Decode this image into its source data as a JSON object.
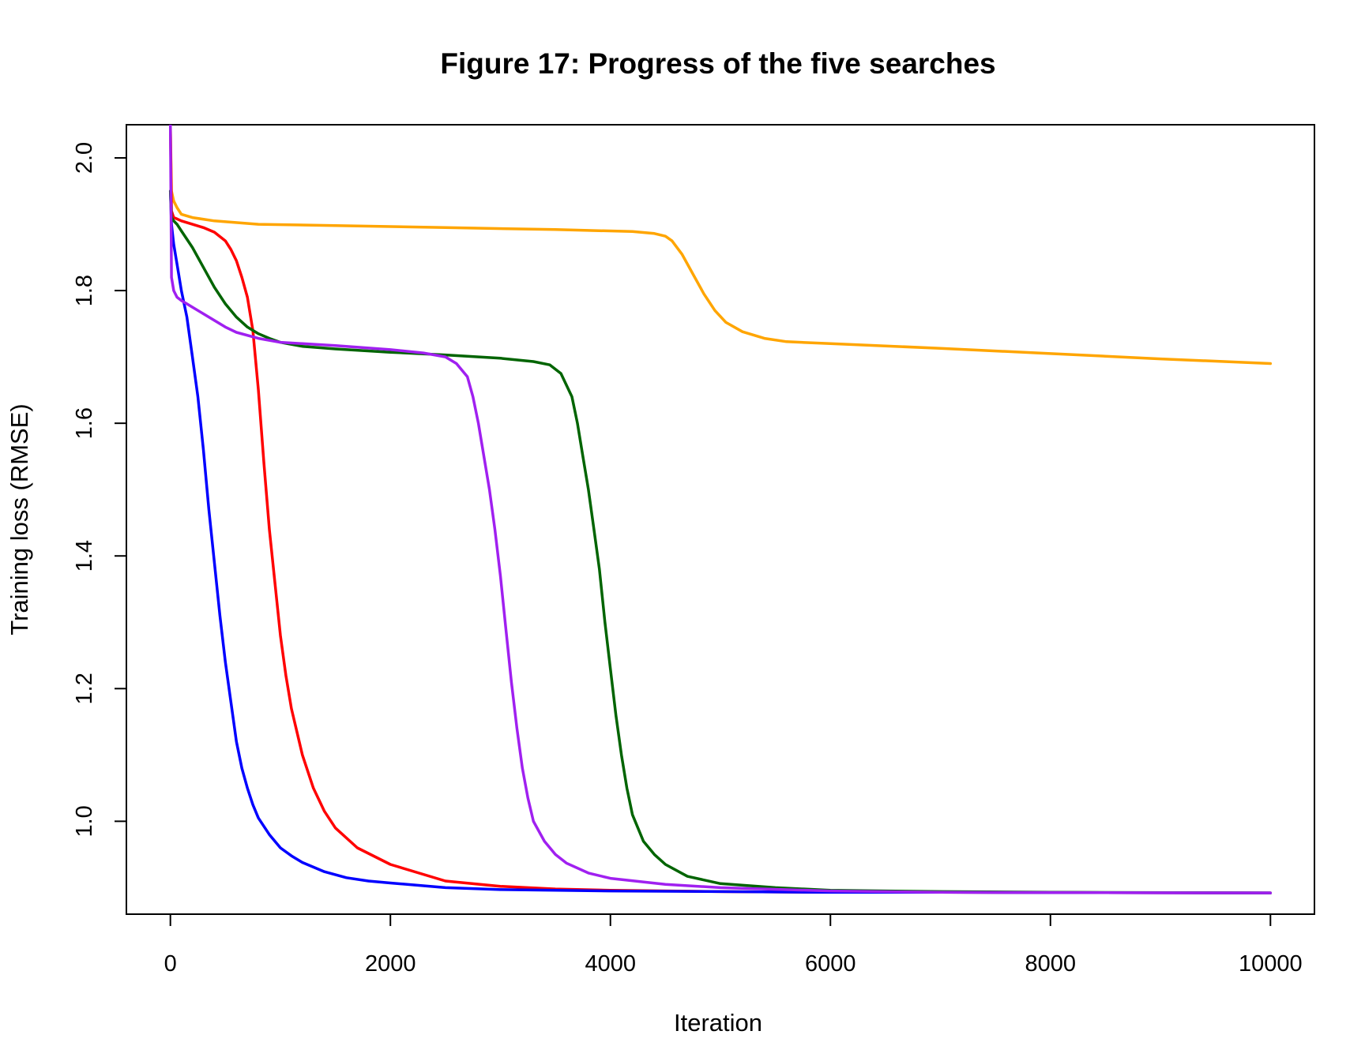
{
  "chart_data": {
    "type": "line",
    "title": "Figure 17: Progress of the five searches",
    "xlabel": "Iteration",
    "ylabel": "Training loss (RMSE)",
    "xlim": [
      -400,
      10400
    ],
    "ylim": [
      0.86,
      2.05
    ],
    "xticks": [
      0,
      2000,
      4000,
      6000,
      8000,
      10000
    ],
    "xtick_labels": [
      "0",
      "2000",
      "4000",
      "6000",
      "8000",
      "10000"
    ],
    "yticks": [
      1.0,
      1.2,
      1.4,
      1.6,
      1.8,
      2.0
    ],
    "ytick_labels": [
      "1.0",
      "1.2",
      "1.4",
      "1.6",
      "1.8",
      "2.0"
    ],
    "grid": false,
    "legend": "none",
    "series": [
      {
        "color": "#FFA500",
        "x": [
          0,
          10,
          30,
          60,
          100,
          200,
          400,
          800,
          1500,
          2500,
          3500,
          4200,
          4400,
          4500,
          4560,
          4650,
          4750,
          4850,
          4950,
          5050,
          5200,
          5400,
          5600,
          6000,
          7000,
          8000,
          9000,
          10000
        ],
        "y": [
          2.05,
          1.95,
          1.935,
          1.925,
          1.915,
          1.91,
          1.905,
          1.9,
          1.898,
          1.895,
          1.892,
          1.889,
          1.886,
          1.882,
          1.875,
          1.855,
          1.825,
          1.795,
          1.77,
          1.752,
          1.738,
          1.728,
          1.723,
          1.72,
          1.713,
          1.705,
          1.697,
          1.69
        ]
      },
      {
        "color": "#FF0000",
        "x": [
          0,
          10,
          30,
          60,
          100,
          200,
          300,
          400,
          500,
          550,
          600,
          650,
          700,
          750,
          800,
          850,
          900,
          950,
          1000,
          1050,
          1100,
          1200,
          1300,
          1400,
          1500,
          1700,
          2000,
          2500,
          3000,
          3500,
          4000,
          5000,
          6000,
          7000,
          10000
        ],
        "y": [
          2.05,
          1.92,
          1.91,
          1.908,
          1.905,
          1.9,
          1.895,
          1.888,
          1.875,
          1.862,
          1.845,
          1.82,
          1.79,
          1.74,
          1.65,
          1.54,
          1.44,
          1.36,
          1.28,
          1.22,
          1.17,
          1.1,
          1.05,
          1.015,
          0.99,
          0.96,
          0.935,
          0.91,
          0.902,
          0.898,
          0.896,
          0.894,
          0.893,
          0.893,
          0.892
        ]
      },
      {
        "color": "#0000FF",
        "x": [
          0,
          10,
          30,
          60,
          100,
          150,
          200,
          250,
          300,
          350,
          400,
          450,
          500,
          550,
          600,
          650,
          700,
          750,
          800,
          900,
          1000,
          1100,
          1200,
          1400,
          1600,
          1800,
          2000,
          2500,
          3000,
          4000,
          5000,
          6000,
          7000,
          10000
        ],
        "y": [
          1.95,
          1.9,
          1.87,
          1.84,
          1.8,
          1.76,
          1.7,
          1.64,
          1.56,
          1.47,
          1.39,
          1.31,
          1.24,
          1.18,
          1.12,
          1.08,
          1.05,
          1.025,
          1.005,
          0.98,
          0.96,
          0.948,
          0.938,
          0.924,
          0.915,
          0.91,
          0.907,
          0.9,
          0.897,
          0.895,
          0.894,
          0.893,
          0.893,
          0.892
        ]
      },
      {
        "color": "#006400",
        "x": [
          0,
          10,
          30,
          60,
          100,
          200,
          300,
          400,
          500,
          600,
          700,
          800,
          900,
          1000,
          1200,
          1500,
          2000,
          2500,
          3000,
          3300,
          3450,
          3550,
          3650,
          3700,
          3750,
          3800,
          3850,
          3900,
          3950,
          4000,
          4050,
          4100,
          4150,
          4200,
          4300,
          4400,
          4500,
          4700,
          5000,
          5500,
          6000,
          7000,
          8000,
          10000
        ],
        "y": [
          1.95,
          1.91,
          1.905,
          1.9,
          1.89,
          1.865,
          1.835,
          1.805,
          1.78,
          1.76,
          1.745,
          1.735,
          1.728,
          1.722,
          1.716,
          1.712,
          1.707,
          1.703,
          1.698,
          1.693,
          1.688,
          1.675,
          1.64,
          1.6,
          1.55,
          1.5,
          1.44,
          1.38,
          1.3,
          1.23,
          1.16,
          1.1,
          1.05,
          1.01,
          0.97,
          0.95,
          0.935,
          0.917,
          0.906,
          0.9,
          0.896,
          0.894,
          0.893,
          0.892
        ]
      },
      {
        "color": "#A020F0",
        "x": [
          0,
          10,
          30,
          60,
          100,
          150,
          200,
          300,
          400,
          500,
          600,
          800,
          1000,
          1500,
          2000,
          2300,
          2500,
          2600,
          2700,
          2750,
          2800,
          2850,
          2900,
          2950,
          3000,
          3050,
          3100,
          3150,
          3200,
          3250,
          3300,
          3400,
          3500,
          3600,
          3800,
          4000,
          4500,
          5000,
          6000,
          7000,
          10000
        ],
        "y": [
          2.05,
          1.82,
          1.8,
          1.79,
          1.785,
          1.78,
          1.775,
          1.765,
          1.755,
          1.745,
          1.737,
          1.728,
          1.722,
          1.717,
          1.711,
          1.706,
          1.7,
          1.69,
          1.67,
          1.64,
          1.6,
          1.55,
          1.5,
          1.44,
          1.37,
          1.29,
          1.21,
          1.14,
          1.08,
          1.035,
          1.0,
          0.97,
          0.95,
          0.937,
          0.922,
          0.914,
          0.905,
          0.9,
          0.895,
          0.893,
          0.892
        ]
      }
    ]
  }
}
